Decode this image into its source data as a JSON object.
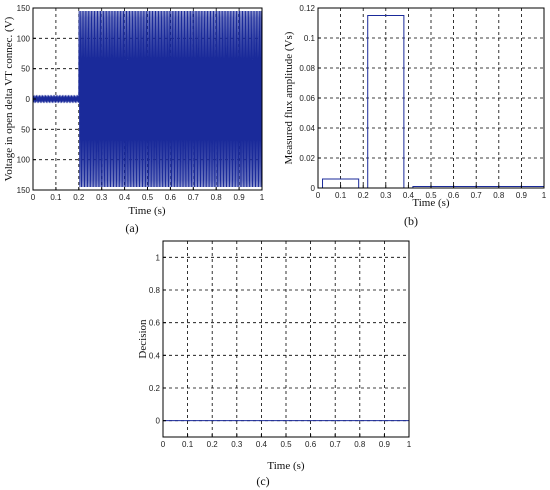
{
  "chart_data": [
    {
      "id": "a",
      "type": "line",
      "panel_label": "(a)",
      "xlabel": "Time (s)",
      "ylabel": "Voltage in open delta VT connec. (V)",
      "xlim": [
        0,
        1
      ],
      "ylim": [
        -150,
        150
      ],
      "xticks": [
        0,
        0.1,
        0.2,
        0.3,
        0.4,
        0.5,
        0.6,
        0.7,
        0.8,
        0.9,
        1
      ],
      "xtick_labels": [
        "0",
        "0.1",
        "0.2",
        "0.3",
        "0.4",
        "0.5",
        "0.6",
        "0.7",
        "0.8",
        "0.9",
        "1"
      ],
      "yticks": [
        150,
        100,
        50,
        0,
        -50,
        -100,
        -150
      ],
      "ytick_labels": [
        "150",
        "100",
        "50",
        "0",
        "50",
        "100",
        "150"
      ],
      "grid": true,
      "color": "#1a2a9a",
      "series": [
        {
          "segments": [
            {
              "x_start": 0.0,
              "x_end": 0.2,
              "amplitude": 5,
              "frequency_hz": 150
            },
            {
              "x_start": 0.2,
              "x_end": 1.0,
              "amplitude": 145,
              "frequency_hz": 150
            }
          ]
        }
      ]
    },
    {
      "id": "b",
      "type": "line",
      "panel_label": "(b)",
      "xlabel": "Time (s)",
      "ylabel": "Measured flux amplitude (Vs)",
      "xlim": [
        0,
        1
      ],
      "ylim": [
        0,
        0.12
      ],
      "xticks": [
        0,
        0.1,
        0.2,
        0.3,
        0.4,
        0.5,
        0.6,
        0.7,
        0.8,
        0.9,
        1
      ],
      "xtick_labels": [
        "0",
        "0.1",
        "0.2",
        "0.3",
        "0.4",
        "0.5",
        "0.6",
        "0.7",
        "0.8",
        "0.9",
        "1"
      ],
      "yticks": [
        0,
        0.02,
        0.04,
        0.06,
        0.08,
        0.1,
        0.12
      ],
      "ytick_labels": [
        "0",
        "0.02",
        "0.04",
        "0.06",
        "0.08",
        "0.1",
        "0.12"
      ],
      "grid": true,
      "color": "#1a2a9a",
      "series": [
        {
          "x": [
            0.02,
            0.02,
            0.18,
            0.18,
            0.22,
            0.22,
            0.38,
            0.38,
            0.42,
            0.42,
            0.78,
            0.78,
            1.0
          ],
          "y": [
            0,
            0.006,
            0.006,
            0,
            0,
            0.115,
            0.115,
            0,
            0,
            0.001,
            0.001,
            0.001,
            0.001
          ]
        }
      ]
    },
    {
      "id": "c",
      "type": "line",
      "panel_label": "(c)",
      "xlabel": "Time (s)",
      "ylabel": "Decision",
      "xlim": [
        0,
        1
      ],
      "ylim": [
        -0.1,
        1.1
      ],
      "xticks": [
        0,
        0.1,
        0.2,
        0.3,
        0.4,
        0.5,
        0.6,
        0.7,
        0.8,
        0.9,
        1
      ],
      "xtick_labels": [
        "0",
        "0.1",
        "0.2",
        "0.3",
        "0.4",
        "0.5",
        "0.6",
        "0.7",
        "0.8",
        "0.9",
        "1"
      ],
      "yticks": [
        0,
        0.2,
        0.4,
        0.6,
        0.8,
        1
      ],
      "ytick_labels": [
        "0",
        "0.2",
        "0.4",
        "0.6",
        "0.8",
        "1"
      ],
      "grid": true,
      "color": "#1a2a9a",
      "series": [
        {
          "x": [
            0,
            1
          ],
          "y": [
            0,
            0
          ]
        }
      ]
    }
  ]
}
